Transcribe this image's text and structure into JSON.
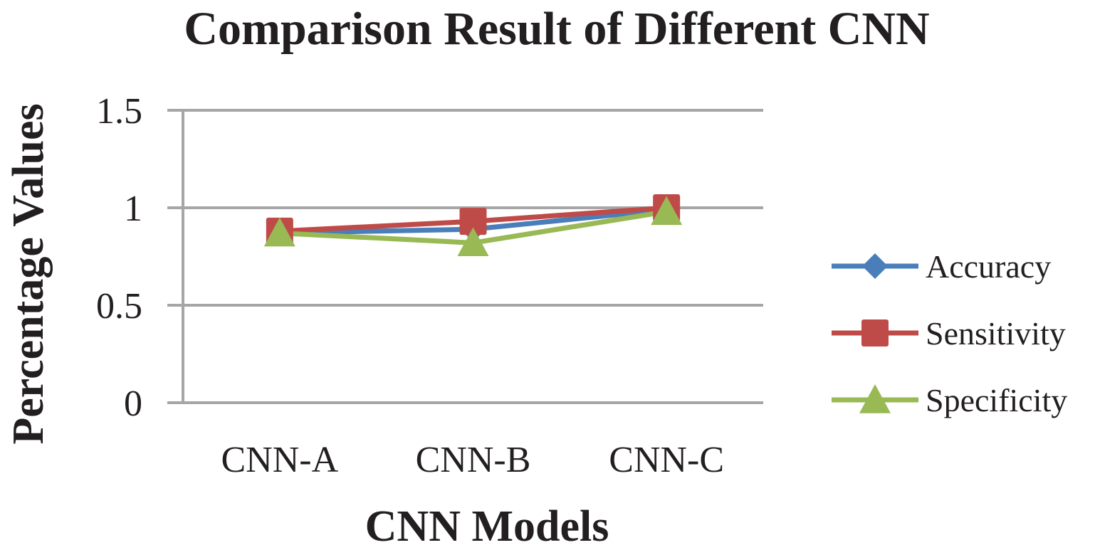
{
  "chart_data": {
    "type": "line",
    "title": "Comparison Result of Different CNN",
    "xlabel": "CNN Models",
    "ylabel": "Percentage Values",
    "categories": [
      "CNN-A",
      "CNN-B",
      "CNN-C"
    ],
    "ylim": [
      0,
      1.5
    ],
    "yticks": [
      0,
      0.5,
      1,
      1.5
    ],
    "ytick_labels": [
      "0",
      "0.5",
      "1",
      "1.5"
    ],
    "grid": true,
    "legend_position": "right",
    "series": [
      {
        "name": "Accuracy",
        "values": [
          0.87,
          0.89,
          0.99
        ],
        "color": "#4a7ebb",
        "marker": "diamond"
      },
      {
        "name": "Sensitivity",
        "values": [
          0.88,
          0.93,
          1.0
        ],
        "color": "#be4b48",
        "marker": "square"
      },
      {
        "name": "Specificity",
        "values": [
          0.87,
          0.82,
          0.98
        ],
        "color": "#98b954",
        "marker": "triangle"
      }
    ]
  }
}
